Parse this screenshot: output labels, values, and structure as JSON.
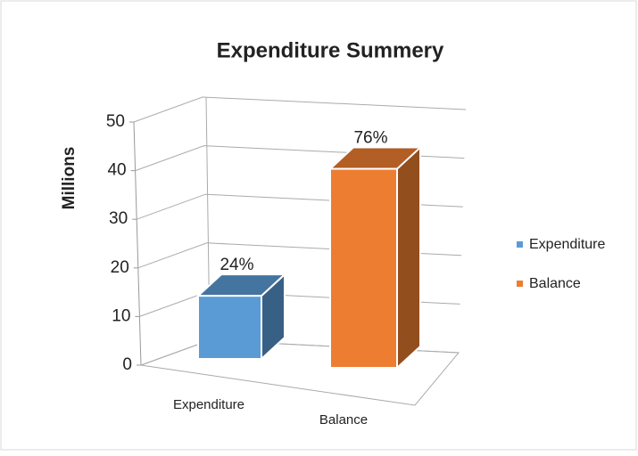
{
  "chart_data": {
    "type": "bar3d",
    "title": "Expenditure Summery",
    "y_label": "Millions",
    "categories": [
      "Expenditure",
      "Balance"
    ],
    "values": [
      13,
      41
    ],
    "value_labels": [
      "24%",
      "76%"
    ],
    "colors": [
      "#5b9bd5",
      "#ed7d31"
    ],
    "ylim": [
      0,
      50
    ],
    "yticks": [
      0,
      10,
      20,
      30,
      40,
      50
    ],
    "grid": true,
    "legend": "right"
  }
}
